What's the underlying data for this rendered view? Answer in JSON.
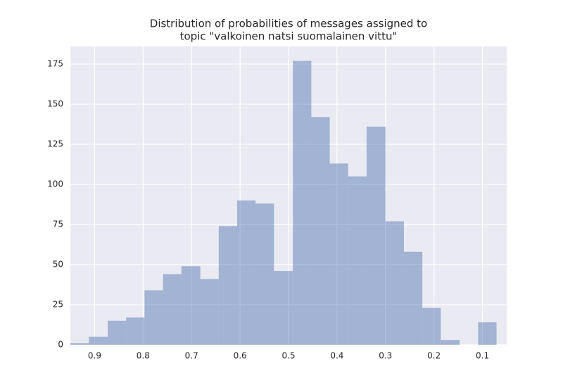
{
  "chart_data": {
    "type": "histogram",
    "title": [
      "Distribution of probabilities of messages assigned to",
      "topic \"valkoinen natsi suomalainen vittu\""
    ],
    "bins": [
      0.071,
      0.109,
      0.147,
      0.186,
      0.224,
      0.262,
      0.3,
      0.339,
      0.377,
      0.415,
      0.453,
      0.491,
      0.53,
      0.568,
      0.606,
      0.644,
      0.682,
      0.721,
      0.759,
      0.797,
      0.835,
      0.873,
      0.912,
      0.95
    ],
    "values": [
      14,
      0,
      3,
      23,
      58,
      77,
      136,
      105,
      113,
      142,
      177,
      46,
      88,
      90,
      74,
      41,
      49,
      44,
      34,
      17,
      15,
      5,
      1
    ],
    "color": "#4c72b0",
    "opacity": 0.45,
    "xlim": [
      0.95,
      0.05
    ],
    "xticks": [
      0.9,
      0.8,
      0.7,
      0.6,
      0.5,
      0.4,
      0.3,
      0.2,
      0.1
    ],
    "ylim": [
      0,
      186
    ],
    "yticks": [
      0,
      25,
      50,
      75,
      100,
      125,
      150,
      175
    ],
    "grid": true
  }
}
